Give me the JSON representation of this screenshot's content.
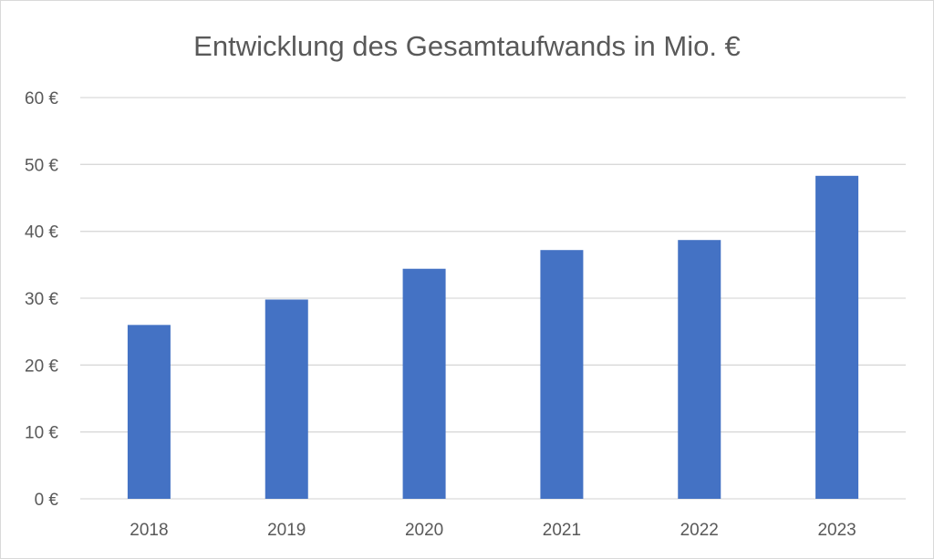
{
  "chart_data": {
    "type": "bar",
    "title": "Entwicklung des Gesamtaufwands in Mio. €",
    "xlabel": "",
    "ylabel": "",
    "categories": [
      "2018",
      "2019",
      "2020",
      "2021",
      "2022",
      "2023"
    ],
    "series": [
      {
        "values": [
          26,
          29.8,
          34.4,
          37.2,
          38.7,
          48.3
        ],
        "color": "#4472C4"
      }
    ],
    "ylim": [
      0,
      60
    ],
    "yticks": [
      0,
      10,
      20,
      30,
      40,
      50,
      60
    ],
    "ytick_labels": [
      "0 €",
      "10 €",
      "20 €",
      "30 €",
      "40 €",
      "50 €",
      "60 €"
    ],
    "grid": true,
    "legend": "none",
    "gridline_color": "#D9D9D9",
    "text_color": "#595959"
  }
}
